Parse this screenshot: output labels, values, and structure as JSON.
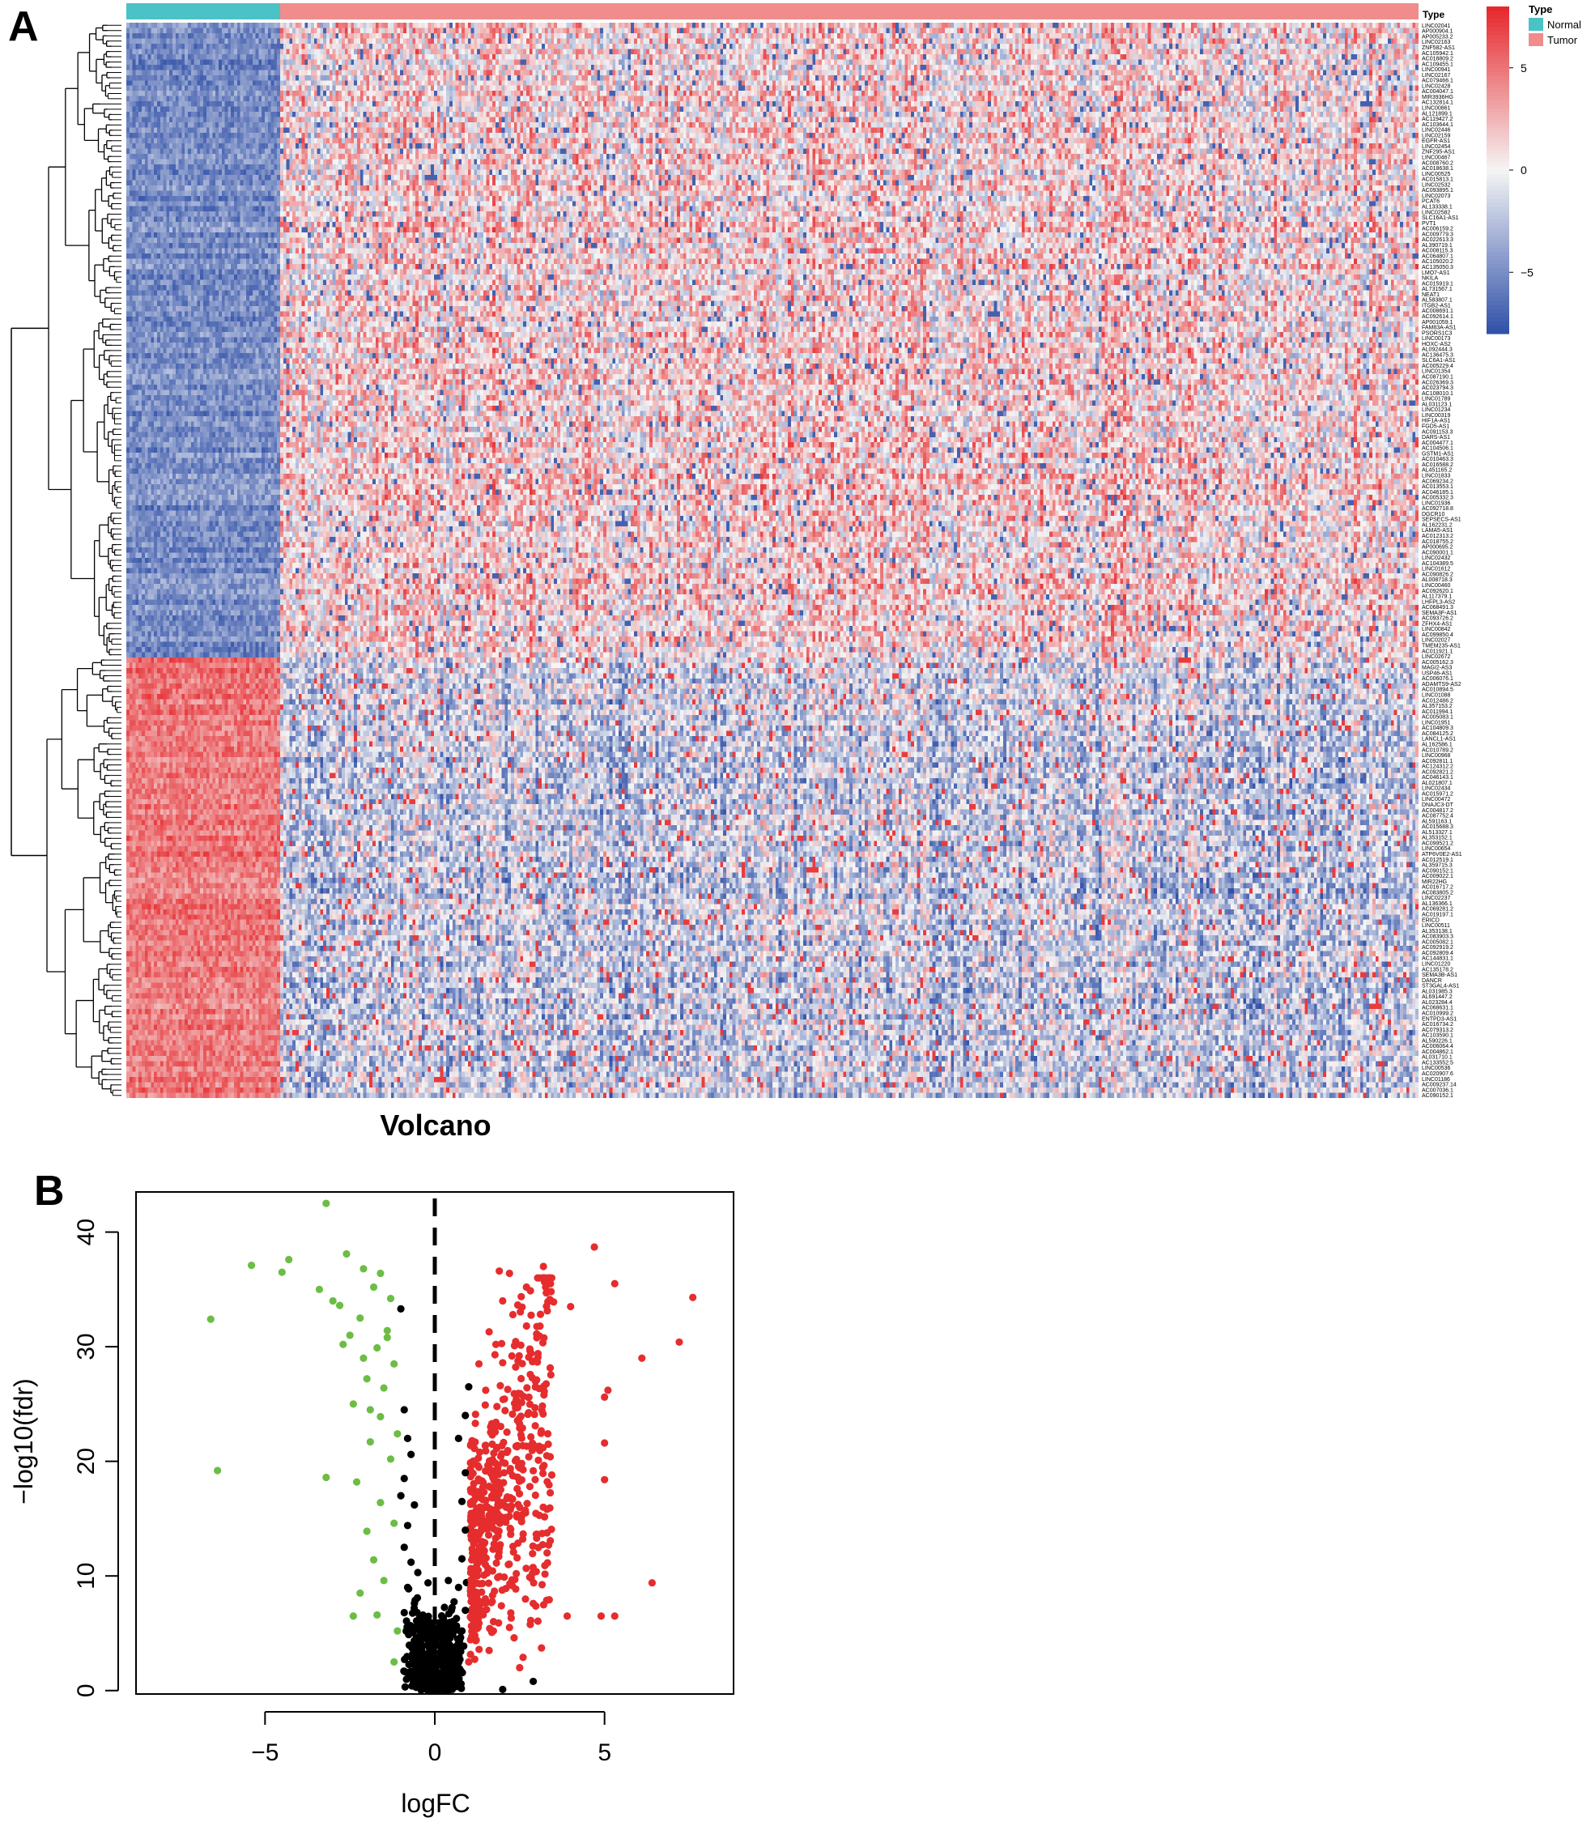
{
  "panel_a": {
    "letter": "A",
    "annotation_title": "Type",
    "legend": {
      "title": "Type",
      "items": [
        {
          "label": "Normal",
          "color": "#4bc2c5"
        },
        {
          "label": "Tumor",
          "color": "#f08c8c"
        }
      ]
    },
    "colorbar": {
      "ticks": [
        {
          "value": 5,
          "label": "5"
        },
        {
          "value": 0,
          "label": "0"
        },
        {
          "value": -5,
          "label": "−5"
        }
      ],
      "range": [
        -8,
        8
      ],
      "colors": {
        "low": "#3050a8",
        "mid": "#f5f5f5",
        "high": "#e6262a"
      }
    },
    "normal_fraction": 0.12,
    "n_up_rows": 121,
    "n_down_rows": 84,
    "gene_labels": [
      "LINC02041",
      "AP000904.1",
      "AP005233.2",
      "LINC02163",
      "ZNF582-AS1",
      "AC105942.1",
      "AC018809.2",
      "AC109455.1",
      "LINC00941",
      "LINC02167",
      "AC079466.1",
      "LINC02428",
      "AC004047.1",
      "MIR3936HG",
      "AC132814.1",
      "LINC00861",
      "AL121899.1",
      "AC119427.2",
      "AC103644.1",
      "LINC02446",
      "LINC02159",
      "EGFR-AS1",
      "LINC02454",
      "ZNF295-AS1",
      "LINC00467",
      "AC008760.2",
      "AC018638.1",
      "LINC00525",
      "AC015813.1",
      "LINC02532",
      "AC093895.1",
      "LINC02073",
      "PCAT6",
      "AL133338.1",
      "LINC02582",
      "SLC16A1-AS1",
      "PVT1",
      "AC006159.2",
      "AC009779.3",
      "AC022613.3",
      "AL390719.1",
      "AC008115.3",
      "AC064807.1",
      "AC105020.2",
      "AC135050.3",
      "LMO7-AS1",
      "NKILA",
      "AC015919.1",
      "AL731567.1",
      "NEAT1",
      "AL583807.1",
      "ITGB2-AS1",
      "AC008691.1",
      "AC092614.1",
      "AP001059.1",
      "FAM83A-AS1",
      "PSORS1C3",
      "LINC00173",
      "HOXC-AS2",
      "AL092444.3",
      "AC136475.3",
      "SLC6A1-AS1",
      "AC005229.4",
      "LINC01354",
      "AC087190.1",
      "AC026369.3",
      "AC023794.3",
      "AC108010.1",
      "LINC01789",
      "AL031123.1",
      "LINC01234",
      "LINC00319",
      "HIF1A-AS1",
      "FGD5-AS1",
      "AC091153.3",
      "DARS-AS1",
      "AC004477.1",
      "AC104506.1",
      "GSTM1-AS1",
      "AC010463.3",
      "AC016588.2",
      "AL451165.2",
      "LINC01833",
      "AC069234.2",
      "AC013553.1",
      "AC046185.1",
      "AC005332.3",
      "LINC01936",
      "AC092718.8",
      "DGCR10",
      "SEPSECS-AS1",
      "AL162231.2",
      "LAMA5-AS1",
      "AC012313.2",
      "AC018755.2",
      "AP000695.2",
      "AC090001.1",
      "LINC02432",
      "AC104389.5",
      "LINC01612",
      "AC090826.2",
      "AL008718.3",
      "LINC00460",
      "AC092620.1",
      "AL117379.1",
      "LHFPL3-AS2",
      "AC068491.3",
      "SEMA3F-AS1",
      "AC093726.2",
      "ZFHX4-AS1",
      "LINC00842",
      "AC099850.4",
      "LINC02027",
      "TMEM235-AS1",
      "AC011921.1",
      "LINC02672",
      "AC005162.3",
      "MAGI2-AS3",
      "USP46-AS1",
      "AC006076.1",
      "ADAMTS9-AS2",
      "AC010894.5",
      "LINC01088",
      "AC012486.2",
      "AL357153.2",
      "AC011994.1",
      "AC005083.1",
      "LINC01951",
      "AC104809.3",
      "AC084125.2",
      "LANCL1-AS1",
      "AL162586.1",
      "AC010789.2",
      "LINC00968",
      "AC092811.1",
      "AC124312.2",
      "AC092821.2",
      "AC046143.1",
      "AL021807.1",
      "LINC02434",
      "AC015971.2",
      "LINC00472",
      "DNAJC3-DT",
      "AC004817.2",
      "AC087752.4",
      "AL591163.1",
      "AC015688.3",
      "AL513327.1",
      "AL353152.1",
      "AC099521.2",
      "LINC00654",
      "ATP6V0E2-AS1",
      "AC012519.1",
      "AL359715.3",
      "AC090152.1",
      "AC009022.1",
      "MIR22HG",
      "AC016717.2",
      "AC083805.2",
      "LINC02237",
      "AL136366.1",
      "AC069281.2",
      "AC019197.1",
      "ERICD",
      "LINC00511",
      "AL353138.1",
      "AC083903.3",
      "AC005082.1",
      "AC092919.2",
      "AC092809.4",
      "AC144831.1",
      "LINC01220",
      "AC135178.2",
      "SEMA3B-AS1",
      "DANCR",
      "ST3GAL4-AS1",
      "AL031985.3",
      "AL691447.2",
      "AL023284.4",
      "AC068631.1",
      "AC010999.2",
      "ENTPD3-AS1",
      "AC016734.2",
      "AC079313.2",
      "AC103590.1",
      "AL590226.1",
      "AC006064.4",
      "AC004862.1",
      "AL031710.1",
      "AC133552.5",
      "LINC00536",
      "AC020907.6",
      "LINC01186",
      "AC009237.14",
      "AC007036.1",
      "AC090152.1"
    ]
  },
  "panel_b": {
    "letter": "B",
    "title": "Volcano",
    "chart_data": {
      "type": "scatter",
      "title": "Volcano",
      "xlabel": "logFC",
      "ylabel": "−log10(fdr)",
      "xlim": [
        -8.8,
        8.8
      ],
      "ylim": [
        -0.3,
        43.5
      ],
      "xticks": [
        {
          "value": -5,
          "label": "−5"
        },
        {
          "value": 0,
          "label": "0"
        },
        {
          "value": 5,
          "label": "5"
        }
      ],
      "yticks": [
        {
          "value": 0,
          "label": "0"
        },
        {
          "value": 10,
          "label": "10"
        },
        {
          "value": 20,
          "label": "20"
        },
        {
          "value": 30,
          "label": "30"
        },
        {
          "value": 40,
          "label": "40"
        }
      ],
      "vline": 0,
      "grid": false,
      "series": [
        {
          "group": "down",
          "color": "#6cbd45",
          "points": [
            [
              -3.2,
              42.5
            ],
            [
              -5.4,
              37.1
            ],
            [
              -6.6,
              32.4
            ],
            [
              -4.3,
              37.6
            ],
            [
              -2.6,
              38.1
            ],
            [
              -4.5,
              36.5
            ],
            [
              -6.4,
              19.2
            ],
            [
              -3.2,
              18.6
            ],
            [
              -1.6,
              36.4
            ],
            [
              -2.1,
              36.8
            ],
            [
              -1.8,
              35.2
            ],
            [
              -1.3,
              34.2
            ],
            [
              -3.4,
              35.0
            ],
            [
              -2.8,
              33.6
            ],
            [
              -2.2,
              32.5
            ],
            [
              -1.4,
              31.4
            ],
            [
              -1.7,
              29.9
            ],
            [
              -2.0,
              27.2
            ],
            [
              -1.2,
              28.5
            ],
            [
              -1.5,
              26.4
            ],
            [
              -2.4,
              25.0
            ],
            [
              -1.6,
              23.9
            ],
            [
              -1.1,
              22.4
            ],
            [
              -1.9,
              21.7
            ],
            [
              -1.3,
              20.2
            ],
            [
              -2.3,
              18.2
            ],
            [
              -1.6,
              16.4
            ],
            [
              -1.2,
              14.6
            ],
            [
              -2.0,
              13.9
            ],
            [
              -1.8,
              11.4
            ],
            [
              -1.5,
              9.6
            ],
            [
              -2.2,
              8.5
            ],
            [
              -2.4,
              6.5
            ],
            [
              -1.7,
              6.6
            ],
            [
              -1.1,
              5.2
            ],
            [
              -1.2,
              2.5
            ],
            [
              -3.0,
              34.0
            ],
            [
              -2.5,
              31.0
            ],
            [
              -1.4,
              30.8
            ],
            [
              -1.9,
              24.5
            ],
            [
              -2.7,
              30.2
            ],
            [
              -2.1,
              29.0
            ]
          ]
        },
        {
          "group": "up",
          "color": "#e52d2e",
          "points": [
            [
              4.7,
              38.7
            ],
            [
              7.6,
              34.3
            ],
            [
              7.2,
              30.4
            ],
            [
              6.1,
              29.0
            ],
            [
              5.1,
              26.2
            ],
            [
              5.0,
              25.6
            ],
            [
              5.0,
              21.6
            ],
            [
              5.0,
              18.4
            ],
            [
              6.4,
              9.4
            ],
            [
              5.3,
              6.5
            ],
            [
              3.9,
              6.5
            ],
            [
              4.9,
              6.5
            ],
            [
              2.6,
              2.9
            ],
            [
              2.5,
              2.0
            ],
            [
              1.9,
              36.6
            ],
            [
              2.2,
              36.4
            ],
            [
              3.2,
              37.0
            ],
            [
              2.7,
              35.2
            ],
            [
              2.0,
              34.0
            ],
            [
              3.5,
              33.9
            ],
            [
              5.3,
              35.5
            ],
            [
              4.0,
              33.5
            ],
            [
              2.3,
              32.8
            ],
            [
              1.6,
              31.3
            ],
            [
              3.1,
              31.8
            ],
            [
              1.8,
              30.2
            ],
            [
              2.8,
              29.8
            ],
            [
              1.3,
              28.5
            ],
            [
              2.0,
              28.6
            ],
            [
              3.0,
              27.1
            ],
            [
              1.5,
              26.2
            ],
            [
              2.4,
              25.4
            ],
            [
              1.2,
              24.1
            ],
            [
              2.5,
              22.9
            ],
            [
              1.8,
              23.4
            ],
            [
              1.1,
              21.8
            ],
            [
              3.4,
              20.4
            ],
            [
              1.5,
              20.9
            ],
            [
              2.0,
              19.9
            ],
            [
              1.3,
              18.3
            ],
            [
              2.8,
              17.8
            ],
            [
              1.1,
              16.5
            ],
            [
              2.1,
              16.0
            ],
            [
              1.6,
              15.3
            ],
            [
              3.0,
              13.3
            ],
            [
              1.2,
              13.8
            ],
            [
              1.9,
              12.4
            ],
            [
              1.4,
              11.3
            ],
            [
              2.4,
              10.2
            ],
            [
              1.1,
              9.3
            ],
            [
              1.7,
              8.3
            ],
            [
              2.9,
              7.6
            ],
            [
              1.3,
              6.5
            ],
            [
              2.2,
              5.5
            ],
            [
              1.1,
              4.5
            ],
            [
              1.6,
              3.5
            ],
            [
              1.0,
              2.5
            ]
          ]
        },
        {
          "group": "ns",
          "color": "#000000",
          "points": [
            [
              -1.0,
              33.3
            ],
            [
              -0.9,
              24.5
            ],
            [
              -0.8,
              22.0
            ],
            [
              -0.7,
              20.6
            ],
            [
              -0.9,
              18.5
            ],
            [
              -1.0,
              17.0
            ],
            [
              -0.6,
              16.2
            ],
            [
              -0.8,
              14.4
            ],
            [
              -0.9,
              12.5
            ],
            [
              -0.7,
              11.2
            ],
            [
              -0.5,
              10.3
            ],
            [
              -0.8,
              9.0
            ],
            [
              -0.6,
              7.6
            ],
            [
              -0.9,
              6.8
            ],
            [
              -0.4,
              6.0
            ],
            [
              -0.7,
              5.1
            ],
            [
              -0.5,
              4.0
            ],
            [
              -0.3,
              3.2
            ],
            [
              -0.6,
              2.4
            ],
            [
              -0.2,
              1.6
            ],
            [
              -0.4,
              0.8
            ],
            [
              -0.1,
              0.3
            ],
            [
              0.0,
              0.1
            ],
            [
              0.1,
              0.5
            ],
            [
              0.2,
              1.0
            ],
            [
              0.3,
              1.6
            ],
            [
              0.5,
              2.2
            ],
            [
              0.6,
              3.1
            ],
            [
              0.7,
              4.0
            ],
            [
              0.8,
              5.2
            ],
            [
              0.9,
              7.0
            ],
            [
              0.7,
              9.0
            ],
            [
              0.8,
              11.5
            ],
            [
              0.9,
              14.0
            ],
            [
              0.8,
              16.5
            ],
            [
              0.9,
              19.0
            ],
            [
              0.7,
              22.0
            ],
            [
              0.9,
              24.0
            ],
            [
              1.0,
              26.5
            ],
            [
              2.9,
              0.8
            ],
            [
              2.0,
              0.1
            ],
            [
              0.4,
              9.6
            ],
            [
              -0.2,
              9.4
            ]
          ]
        }
      ]
    }
  }
}
